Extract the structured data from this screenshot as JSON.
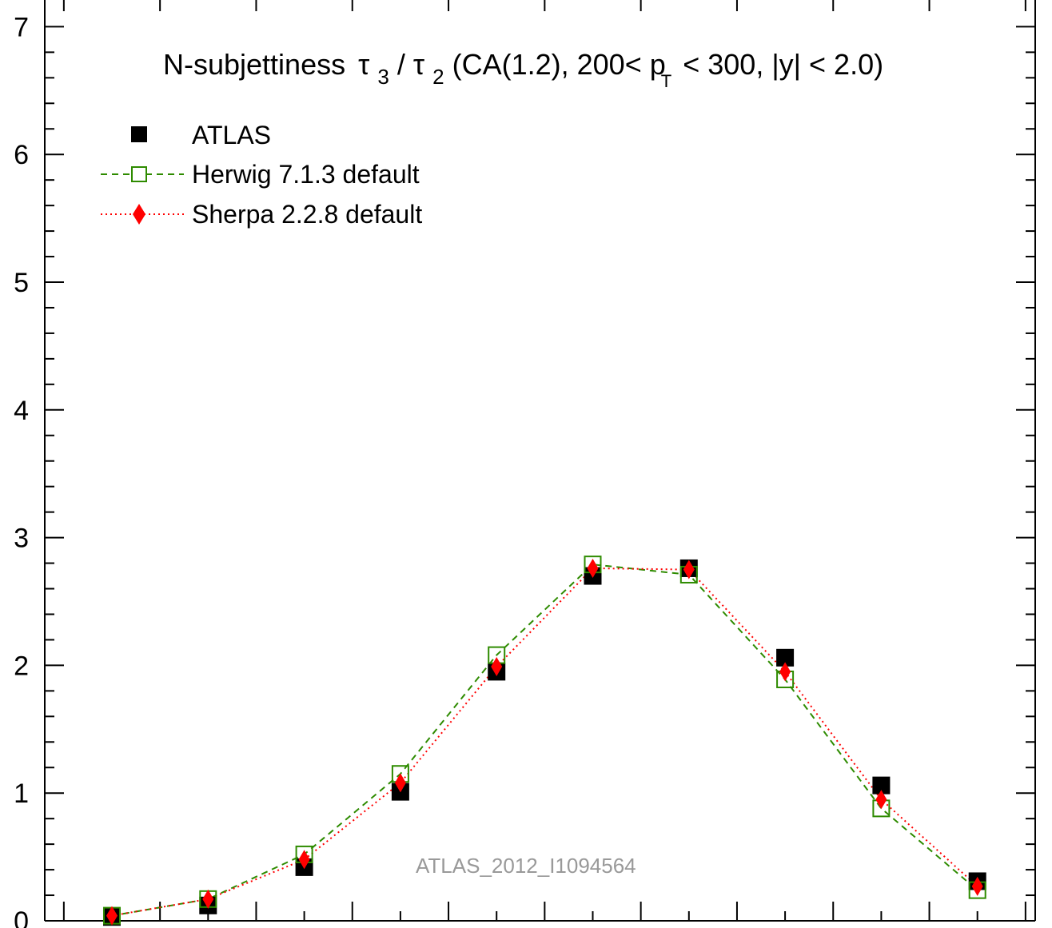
{
  "chart_data": {
    "type": "scatter",
    "title": {
      "prefix": "N-subjettiness",
      "tau": "τ",
      "sub1": "3",
      "slash": "/",
      "sub2": "2",
      "rest1": " (CA(1.2), 200< p",
      "subT": "T",
      "rest2": " < 300, |y| < 2.0)"
    },
    "xlabel": "",
    "ylabel": "",
    "ylim": [
      0,
      7
    ],
    "yticks": [
      "0",
      "1",
      "2",
      "3",
      "4",
      "5",
      "6",
      "7"
    ],
    "watermark": "ATLAS_2012_I1094564",
    "x": [
      1,
      2,
      3,
      4,
      5,
      6,
      7,
      8,
      9,
      10
    ],
    "series": [
      {
        "name": "ATLAS",
        "marker": "square-filled",
        "color": "#000000",
        "values": [
          0.03,
          0.12,
          0.42,
          1.01,
          1.95,
          2.7,
          2.76,
          2.06,
          1.06,
          0.31
        ]
      },
      {
        "name": "Herwig 7.1.3 default",
        "marker": "square-open",
        "line": "dashed",
        "color": "#2e8b00",
        "values": [
          0.04,
          0.17,
          0.52,
          1.15,
          2.08,
          2.79,
          2.71,
          1.89,
          0.88,
          0.24
        ]
      },
      {
        "name": "Sherpa 2.2.8 default",
        "marker": "diamond-filled",
        "line": "dotted",
        "color": "#ff0000",
        "values": [
          0.04,
          0.17,
          0.48,
          1.08,
          1.99,
          2.76,
          2.75,
          1.95,
          0.95,
          0.27
        ]
      }
    ]
  }
}
